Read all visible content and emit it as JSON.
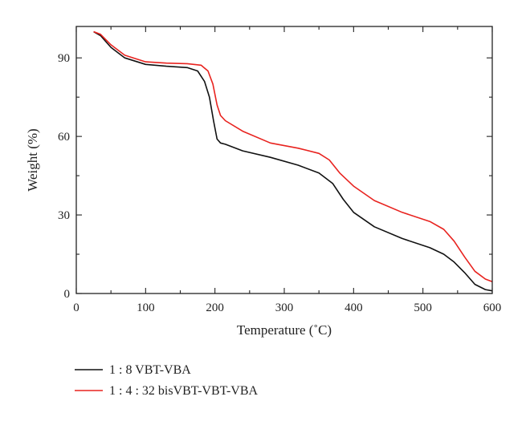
{
  "chart_data": {
    "type": "line",
    "xlabel": "Temperature (˚C)",
    "ylabel": "Weight (%)",
    "xlim": [
      0,
      600
    ],
    "ylim": [
      0,
      102
    ],
    "xticks": [
      "0",
      "100",
      "200",
      "300",
      "400",
      "500",
      "600"
    ],
    "yticks": [
      "0",
      "30",
      "60",
      "90"
    ],
    "grid": false,
    "legend_position": "bottom-left, below plot",
    "series": [
      {
        "name": "1 : 8 VBT-VBA",
        "color": "#111111",
        "x": [
          25,
          35,
          50,
          70,
          100,
          130,
          160,
          175,
          185,
          192,
          198,
          203,
          208,
          215,
          240,
          280,
          320,
          350,
          370,
          385,
          400,
          430,
          470,
          510,
          530,
          545,
          560,
          575,
          590,
          600
        ],
        "y": [
          100,
          98.5,
          94,
          90,
          87.5,
          86.8,
          86.3,
          85,
          81,
          75,
          66,
          59,
          57.5,
          57,
          54.5,
          52,
          49,
          46,
          42,
          36,
          31,
          25.5,
          21,
          17.5,
          15,
          12,
          8,
          3.5,
          1.5,
          1
        ]
      },
      {
        "name": "1 : 4 : 32 bisVBT-VBT-VBA",
        "color": "#e8231f",
        "x": [
          25,
          35,
          50,
          70,
          100,
          130,
          160,
          180,
          190,
          197,
          203,
          208,
          215,
          240,
          280,
          320,
          350,
          365,
          380,
          400,
          430,
          470,
          510,
          530,
          545,
          560,
          575,
          590,
          600
        ],
        "y": [
          100,
          99,
          95,
          91,
          88.5,
          88,
          87.8,
          87.2,
          85,
          80,
          72,
          68,
          66,
          62,
          57.5,
          55.5,
          53.5,
          51,
          46,
          41,
          35.5,
          31,
          27.5,
          24.5,
          20,
          14,
          8.5,
          5.5,
          4.5
        ]
      }
    ]
  }
}
